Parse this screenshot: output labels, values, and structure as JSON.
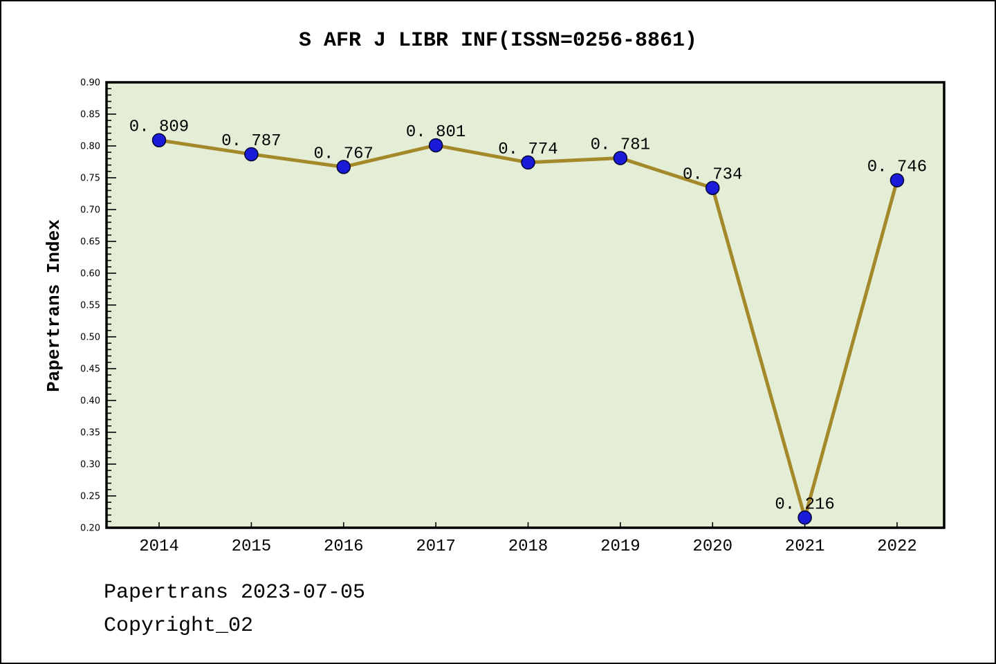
{
  "window": {
    "background": "#ffffff",
    "border_color": "#000000"
  },
  "title": "S AFR J LIBR INF(ISSN=0256-8861)",
  "footer": {
    "date_line": "Papertrans 2023-07-05",
    "copyright_line": "Copyright_02"
  },
  "chart_data": {
    "type": "line",
    "title": "S AFR J LIBR INF(ISSN=0256-8861)",
    "xlabel": "",
    "ylabel": "Papertrans Index",
    "x": [
      2014,
      2015,
      2016,
      2017,
      2018,
      2019,
      2020,
      2021,
      2022
    ],
    "values": [
      0.809,
      0.787,
      0.767,
      0.801,
      0.774,
      0.781,
      0.734,
      0.216,
      0.746
    ],
    "point_labels": [
      "0. 809",
      "0. 787",
      "0. 767",
      "0. 801",
      "0. 774",
      "0. 781",
      "0. 734",
      "0. 216",
      "0. 746"
    ],
    "series_name": "Papertrans Index",
    "ylim": [
      0.2,
      0.9
    ],
    "xlim": [
      2013.43,
      2022.51
    ],
    "ytick_major_step": 0.05,
    "ytick_minor_step": 0.01,
    "grid": false,
    "legend": null,
    "colors": {
      "plot_bg": "#e4eed6",
      "line": "#a4892b",
      "marker": "#1a1ad9",
      "marker_edge": "#000030",
      "axis": "#000000",
      "text": "#000000"
    }
  }
}
